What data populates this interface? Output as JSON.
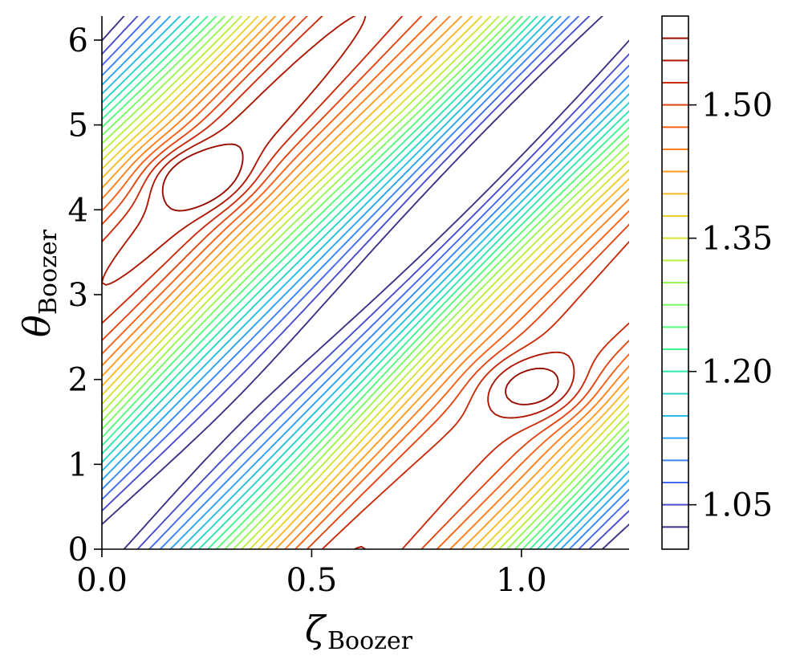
{
  "chart_data": {
    "type": "contour",
    "title": "",
    "xlabel": "ζ",
    "xlabel_sub": "Boozer",
    "ylabel": "θ",
    "ylabel_sub": "Boozer",
    "xlim": [
      0,
      1.2566
    ],
    "ylim": [
      0,
      6.2832
    ],
    "xticks": [
      0.0,
      0.5,
      1.0
    ],
    "xtick_labels": [
      "0.0",
      "0.5",
      "1.0"
    ],
    "yticks": [
      0,
      1,
      2,
      3,
      4,
      5,
      6
    ],
    "ytick_labels": [
      "0",
      "1",
      "2",
      "3",
      "4",
      "5",
      "6"
    ],
    "colormap": "turbo",
    "colorbar": {
      "min": 1.0,
      "max": 1.6,
      "ticks": [
        1.05,
        1.2,
        1.35,
        1.5
      ],
      "tick_labels": [
        "1.05",
        "1.20",
        "1.35",
        "1.50"
      ],
      "levels": [
        1.025,
        1.05,
        1.075,
        1.1,
        1.125,
        1.15,
        1.175,
        1.2,
        1.225,
        1.25,
        1.275,
        1.3,
        1.325,
        1.35,
        1.375,
        1.4,
        1.425,
        1.45,
        1.475,
        1.5,
        1.525,
        1.55,
        1.575
      ]
    },
    "field_description": "B(zeta, theta) with helical valley along theta ≈ 5*(zeta-0.628)+3.14; maxima near (0.25, 4.4) and (1.0, 1.9)",
    "grid": false,
    "legend": "none"
  }
}
